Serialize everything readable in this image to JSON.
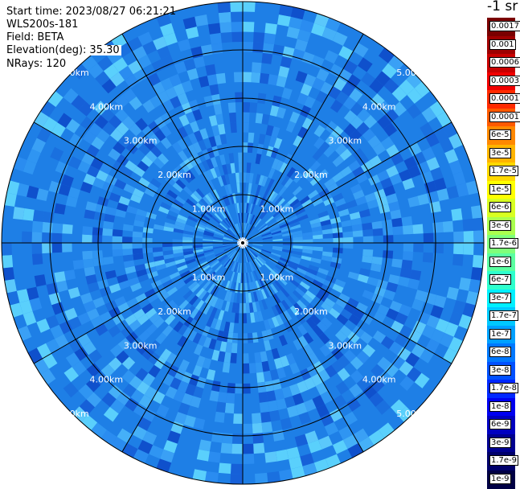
{
  "plot": {
    "start_time_label": "Start time:",
    "start_time": "2023/08/27 06:21:21",
    "instrument": "WLS200s-181",
    "field_label": "Field:",
    "field": "BETA",
    "elevation_label": "Elevation(deg):",
    "elevation": "35.30",
    "nrays_label": "NRays:",
    "nrays": "120",
    "unit_label": "-1 sr",
    "range_rings": [
      "1.00km",
      "2.00km",
      "3.00km",
      "4.00km",
      "5.00km"
    ],
    "num_rays": 120,
    "radar_background": "#1e7fe6",
    "axis_color": "#000000",
    "ring_label_color": "#ffffff"
  },
  "colorbar": {
    "ticks": [
      {
        "label": "0.0017",
        "color": "#7a0000"
      },
      {
        "label": "0.001",
        "color": "#9e0000"
      },
      {
        "label": "0.0006",
        "color": "#c80000"
      },
      {
        "label": "0.0003",
        "color": "#f00000"
      },
      {
        "label": "0.00017",
        "color": "#ff2a00"
      },
      {
        "label": "0.0001",
        "color": "#ff5a00"
      },
      {
        "label": "6e-5",
        "color": "#ff8800"
      },
      {
        "label": "3e-5",
        "color": "#ffb400"
      },
      {
        "label": "1.7e-5",
        "color": "#ffd800"
      },
      {
        "label": "1e-5",
        "color": "#ffff00"
      },
      {
        "label": "6e-6",
        "color": "#d8ff22"
      },
      {
        "label": "3e-6",
        "color": "#aaff4e"
      },
      {
        "label": "1.7e-6",
        "color": "#80ff7a"
      },
      {
        "label": "1e-6",
        "color": "#5affa0"
      },
      {
        "label": "6e-7",
        "color": "#2effcc"
      },
      {
        "label": "3e-7",
        "color": "#00f0ff"
      },
      {
        "label": "1.7e-7",
        "color": "#00c8ff"
      },
      {
        "label": "1e-7",
        "color": "#00a0ff"
      },
      {
        "label": "6e-8",
        "color": "#0078ff"
      },
      {
        "label": "3e-8",
        "color": "#0050ff"
      },
      {
        "label": "1.7e-8",
        "color": "#0028ff"
      },
      {
        "label": "1e-8",
        "color": "#0000f0"
      },
      {
        "label": "6e-9",
        "color": "#0000c0"
      },
      {
        "label": "3e-9",
        "color": "#000090"
      },
      {
        "label": "1.7e-9",
        "color": "#00006a"
      },
      {
        "label": "1e-9",
        "color": "#000044"
      }
    ]
  }
}
